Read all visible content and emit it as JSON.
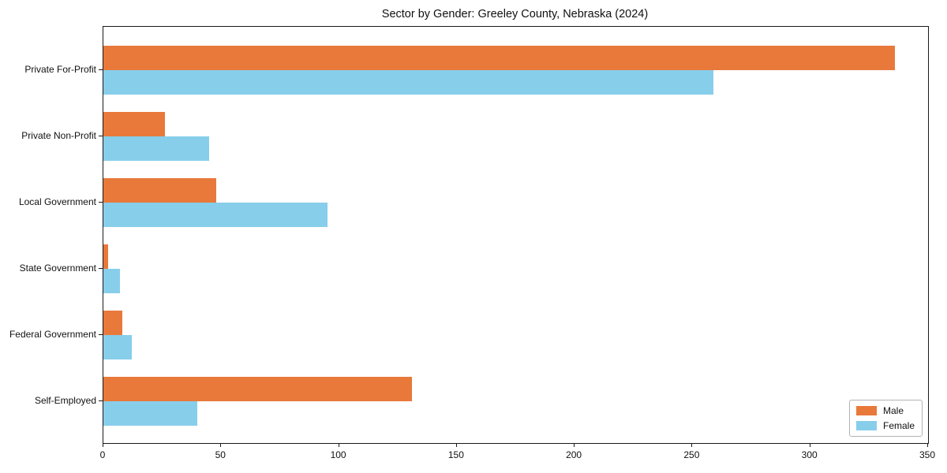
{
  "chart_data": {
    "type": "bar",
    "orientation": "horizontal",
    "title": "Sector by Gender: Greeley County, Nebraska (2024)",
    "categories": [
      "Private For-Profit",
      "Private Non-Profit",
      "Local Government",
      "State Government",
      "Federal Government",
      "Self-Employed"
    ],
    "series": [
      {
        "name": "Male",
        "color": "#e8793b",
        "values": [
          336,
          26,
          48,
          2,
          8,
          131
        ]
      },
      {
        "name": "Female",
        "color": "#87ceeb",
        "values": [
          259,
          45,
          95,
          7,
          12,
          40
        ]
      }
    ],
    "xlabel": "",
    "ylabel": "",
    "xlim": [
      0,
      350
    ],
    "xticks": [
      0,
      50,
      100,
      150,
      200,
      250,
      300,
      350
    ],
    "grid": false,
    "legend_position": "lower right",
    "colors": {
      "male": "#e8793b",
      "female": "#87ceeb",
      "axis": "#1a1a1a"
    }
  }
}
